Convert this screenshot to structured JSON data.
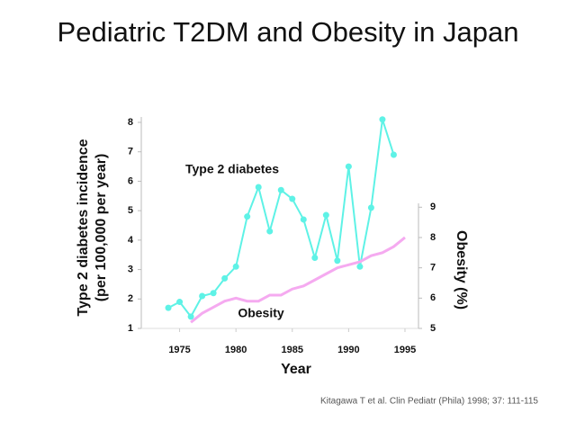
{
  "chart_data": {
    "type": "line",
    "title": "Pediatric T2DM and Obesity in Japan",
    "ylabel": [
      "Type 2 diabetes incidence",
      "(per 100,000 per year)"
    ],
    "y2label": "Obesity (%)",
    "xlabel": "Year",
    "citation": "Kitagawa T et al. Clin Pediatr (Phila) 1998; 37: 111-115",
    "xlim": [
      1971.6,
      1996.2
    ],
    "xticks": [
      1975,
      1980,
      1985,
      1990,
      1995
    ],
    "ylim": [
      1,
      8
    ],
    "yticks": [
      1,
      2,
      3,
      4,
      5,
      6,
      7,
      8
    ],
    "y2lim": [
      5,
      11.8
    ],
    "y2ticks": [
      5,
      6,
      7,
      8,
      9
    ],
    "series": [
      {
        "name": "Type 2 diabetes",
        "color": "#5ef2e6",
        "x": [
          1974,
          1975,
          1976,
          1977,
          1978,
          1979,
          1980,
          1981,
          1982,
          1983,
          1984,
          1985,
          1986,
          1987,
          1988,
          1989,
          1990,
          1991,
          1992,
          1993,
          1994
        ],
        "values": [
          1.7,
          1.9,
          1.4,
          2.1,
          2.2,
          2.7,
          3.1,
          4.8,
          5.8,
          4.3,
          5.7,
          5.4,
          4.7,
          3.4,
          4.85,
          3.3,
          6.5,
          3.1,
          5.1,
          8.1,
          6.9
        ]
      },
      {
        "name": "Obesity",
        "color": "#f5aaf0",
        "axis": "y2",
        "x": [
          1976,
          1977,
          1978,
          1979,
          1980,
          1981,
          1982,
          1983,
          1984,
          1985,
          1986,
          1987,
          1988,
          1989,
          1990,
          1991,
          1992,
          1993,
          1994,
          1995
        ],
        "values": [
          5.2,
          5.5,
          5.7,
          5.9,
          6.0,
          5.9,
          5.9,
          6.1,
          6.1,
          6.3,
          6.4,
          6.6,
          6.8,
          7.0,
          7.1,
          7.2,
          7.4,
          7.5,
          7.7,
          8.0
        ]
      }
    ]
  }
}
